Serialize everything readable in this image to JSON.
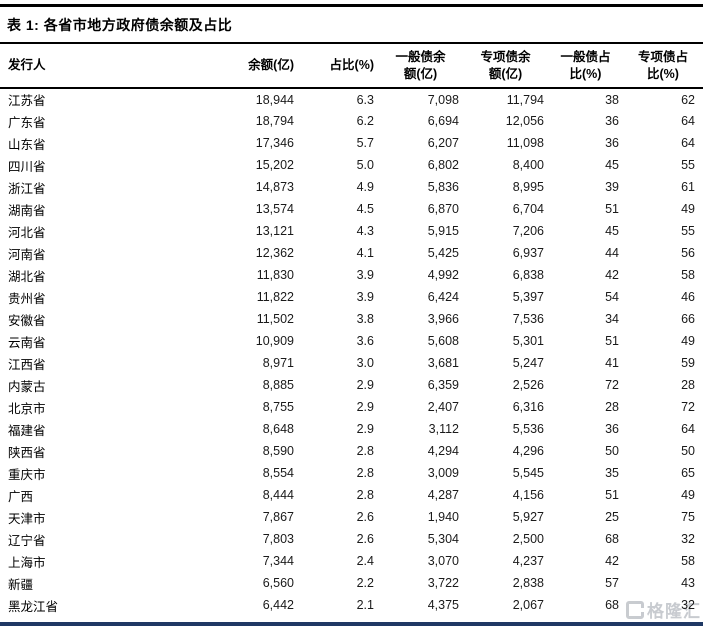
{
  "title": "表 1:  各省市地方政府债余额及占比",
  "table": {
    "columns": [
      {
        "label": "发行人",
        "align": "left"
      },
      {
        "label": "余额(亿)",
        "align": "right"
      },
      {
        "label": "占比(%)",
        "align": "right"
      },
      {
        "label": "一般债余\n额(亿)",
        "align": "center"
      },
      {
        "label": "专项债余\n额(亿)",
        "align": "center"
      },
      {
        "label": "一般债占\n比(%)",
        "align": "center"
      },
      {
        "label": "专项债占\n比(%)",
        "align": "center"
      }
    ],
    "rows": [
      [
        "江苏省",
        "18,944",
        "6.3",
        "7,098",
        "11,794",
        "38",
        "62"
      ],
      [
        "广东省",
        "18,794",
        "6.2",
        "6,694",
        "12,056",
        "36",
        "64"
      ],
      [
        "山东省",
        "17,346",
        "5.7",
        "6,207",
        "11,098",
        "36",
        "64"
      ],
      [
        "四川省",
        "15,202",
        "5.0",
        "6,802",
        "8,400",
        "45",
        "55"
      ],
      [
        "浙江省",
        "14,873",
        "4.9",
        "5,836",
        "8,995",
        "39",
        "61"
      ],
      [
        "湖南省",
        "13,574",
        "4.5",
        "6,870",
        "6,704",
        "51",
        "49"
      ],
      [
        "河北省",
        "13,121",
        "4.3",
        "5,915",
        "7,206",
        "45",
        "55"
      ],
      [
        "河南省",
        "12,362",
        "4.1",
        "5,425",
        "6,937",
        "44",
        "56"
      ],
      [
        "湖北省",
        "11,830",
        "3.9",
        "4,992",
        "6,838",
        "42",
        "58"
      ],
      [
        "贵州省",
        "11,822",
        "3.9",
        "6,424",
        "5,397",
        "54",
        "46"
      ],
      [
        "安徽省",
        "11,502",
        "3.8",
        "3,966",
        "7,536",
        "34",
        "66"
      ],
      [
        "云南省",
        "10,909",
        "3.6",
        "5,608",
        "5,301",
        "51",
        "49"
      ],
      [
        "江西省",
        "8,971",
        "3.0",
        "3,681",
        "5,247",
        "41",
        "59"
      ],
      [
        "内蒙古",
        "8,885",
        "2.9",
        "6,359",
        "2,526",
        "72",
        "28"
      ],
      [
        "北京市",
        "8,755",
        "2.9",
        "2,407",
        "6,316",
        "28",
        "72"
      ],
      [
        "福建省",
        "8,648",
        "2.9",
        "3,112",
        "5,536",
        "36",
        "64"
      ],
      [
        "陕西省",
        "8,590",
        "2.8",
        "4,294",
        "4,296",
        "50",
        "50"
      ],
      [
        "重庆市",
        "8,554",
        "2.8",
        "3,009",
        "5,545",
        "35",
        "65"
      ],
      [
        "广西",
        "8,444",
        "2.8",
        "4,287",
        "4,156",
        "51",
        "49"
      ],
      [
        "天津市",
        "7,867",
        "2.6",
        "1,940",
        "5,927",
        "25",
        "75"
      ],
      [
        "辽宁省",
        "7,803",
        "2.6",
        "5,304",
        "2,500",
        "68",
        "32"
      ],
      [
        "上海市",
        "7,344",
        "2.4",
        "3,070",
        "4,237",
        "42",
        "58"
      ],
      [
        "新疆",
        "6,560",
        "2.2",
        "3,722",
        "2,838",
        "57",
        "43"
      ],
      [
        "黑龙江省",
        "6,442",
        "2.1",
        "4,375",
        "2,067",
        "68",
        "32"
      ]
    ]
  },
  "watermark": {
    "brand": "格隆汇"
  },
  "colors": {
    "top_rule": "#000000",
    "header_rule": "#000000",
    "bottom_rule": "#1f3864",
    "watermark": "#c6c9ce"
  }
}
